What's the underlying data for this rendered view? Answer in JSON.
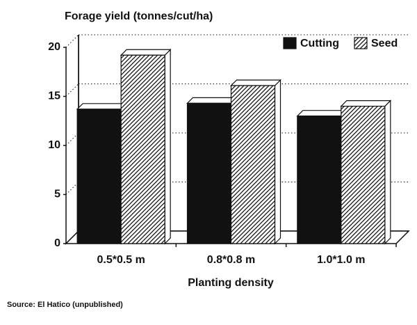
{
  "chart_data": {
    "type": "bar3d",
    "title": "Forage yield (tonnes/cut/ha)",
    "x_label": "Planting density",
    "source": "Source: El Hatico (unpublished)",
    "categories": [
      "0.5*0.5 m",
      "0.8*0.8 m",
      "1.0*1.0 m"
    ],
    "series": [
      {
        "name": "Cutting",
        "color": "#111111",
        "fill": "solid",
        "values": [
          13.7,
          14.3,
          13.0
        ]
      },
      {
        "name": "Seed",
        "color": "#111111",
        "fill": "hatch",
        "values": [
          19.2,
          16.1,
          14.0
        ]
      }
    ],
    "ylim": [
      0,
      20
    ],
    "yticks": [
      0,
      5,
      10,
      15,
      20
    ],
    "grid": true,
    "legend": "top-right"
  }
}
